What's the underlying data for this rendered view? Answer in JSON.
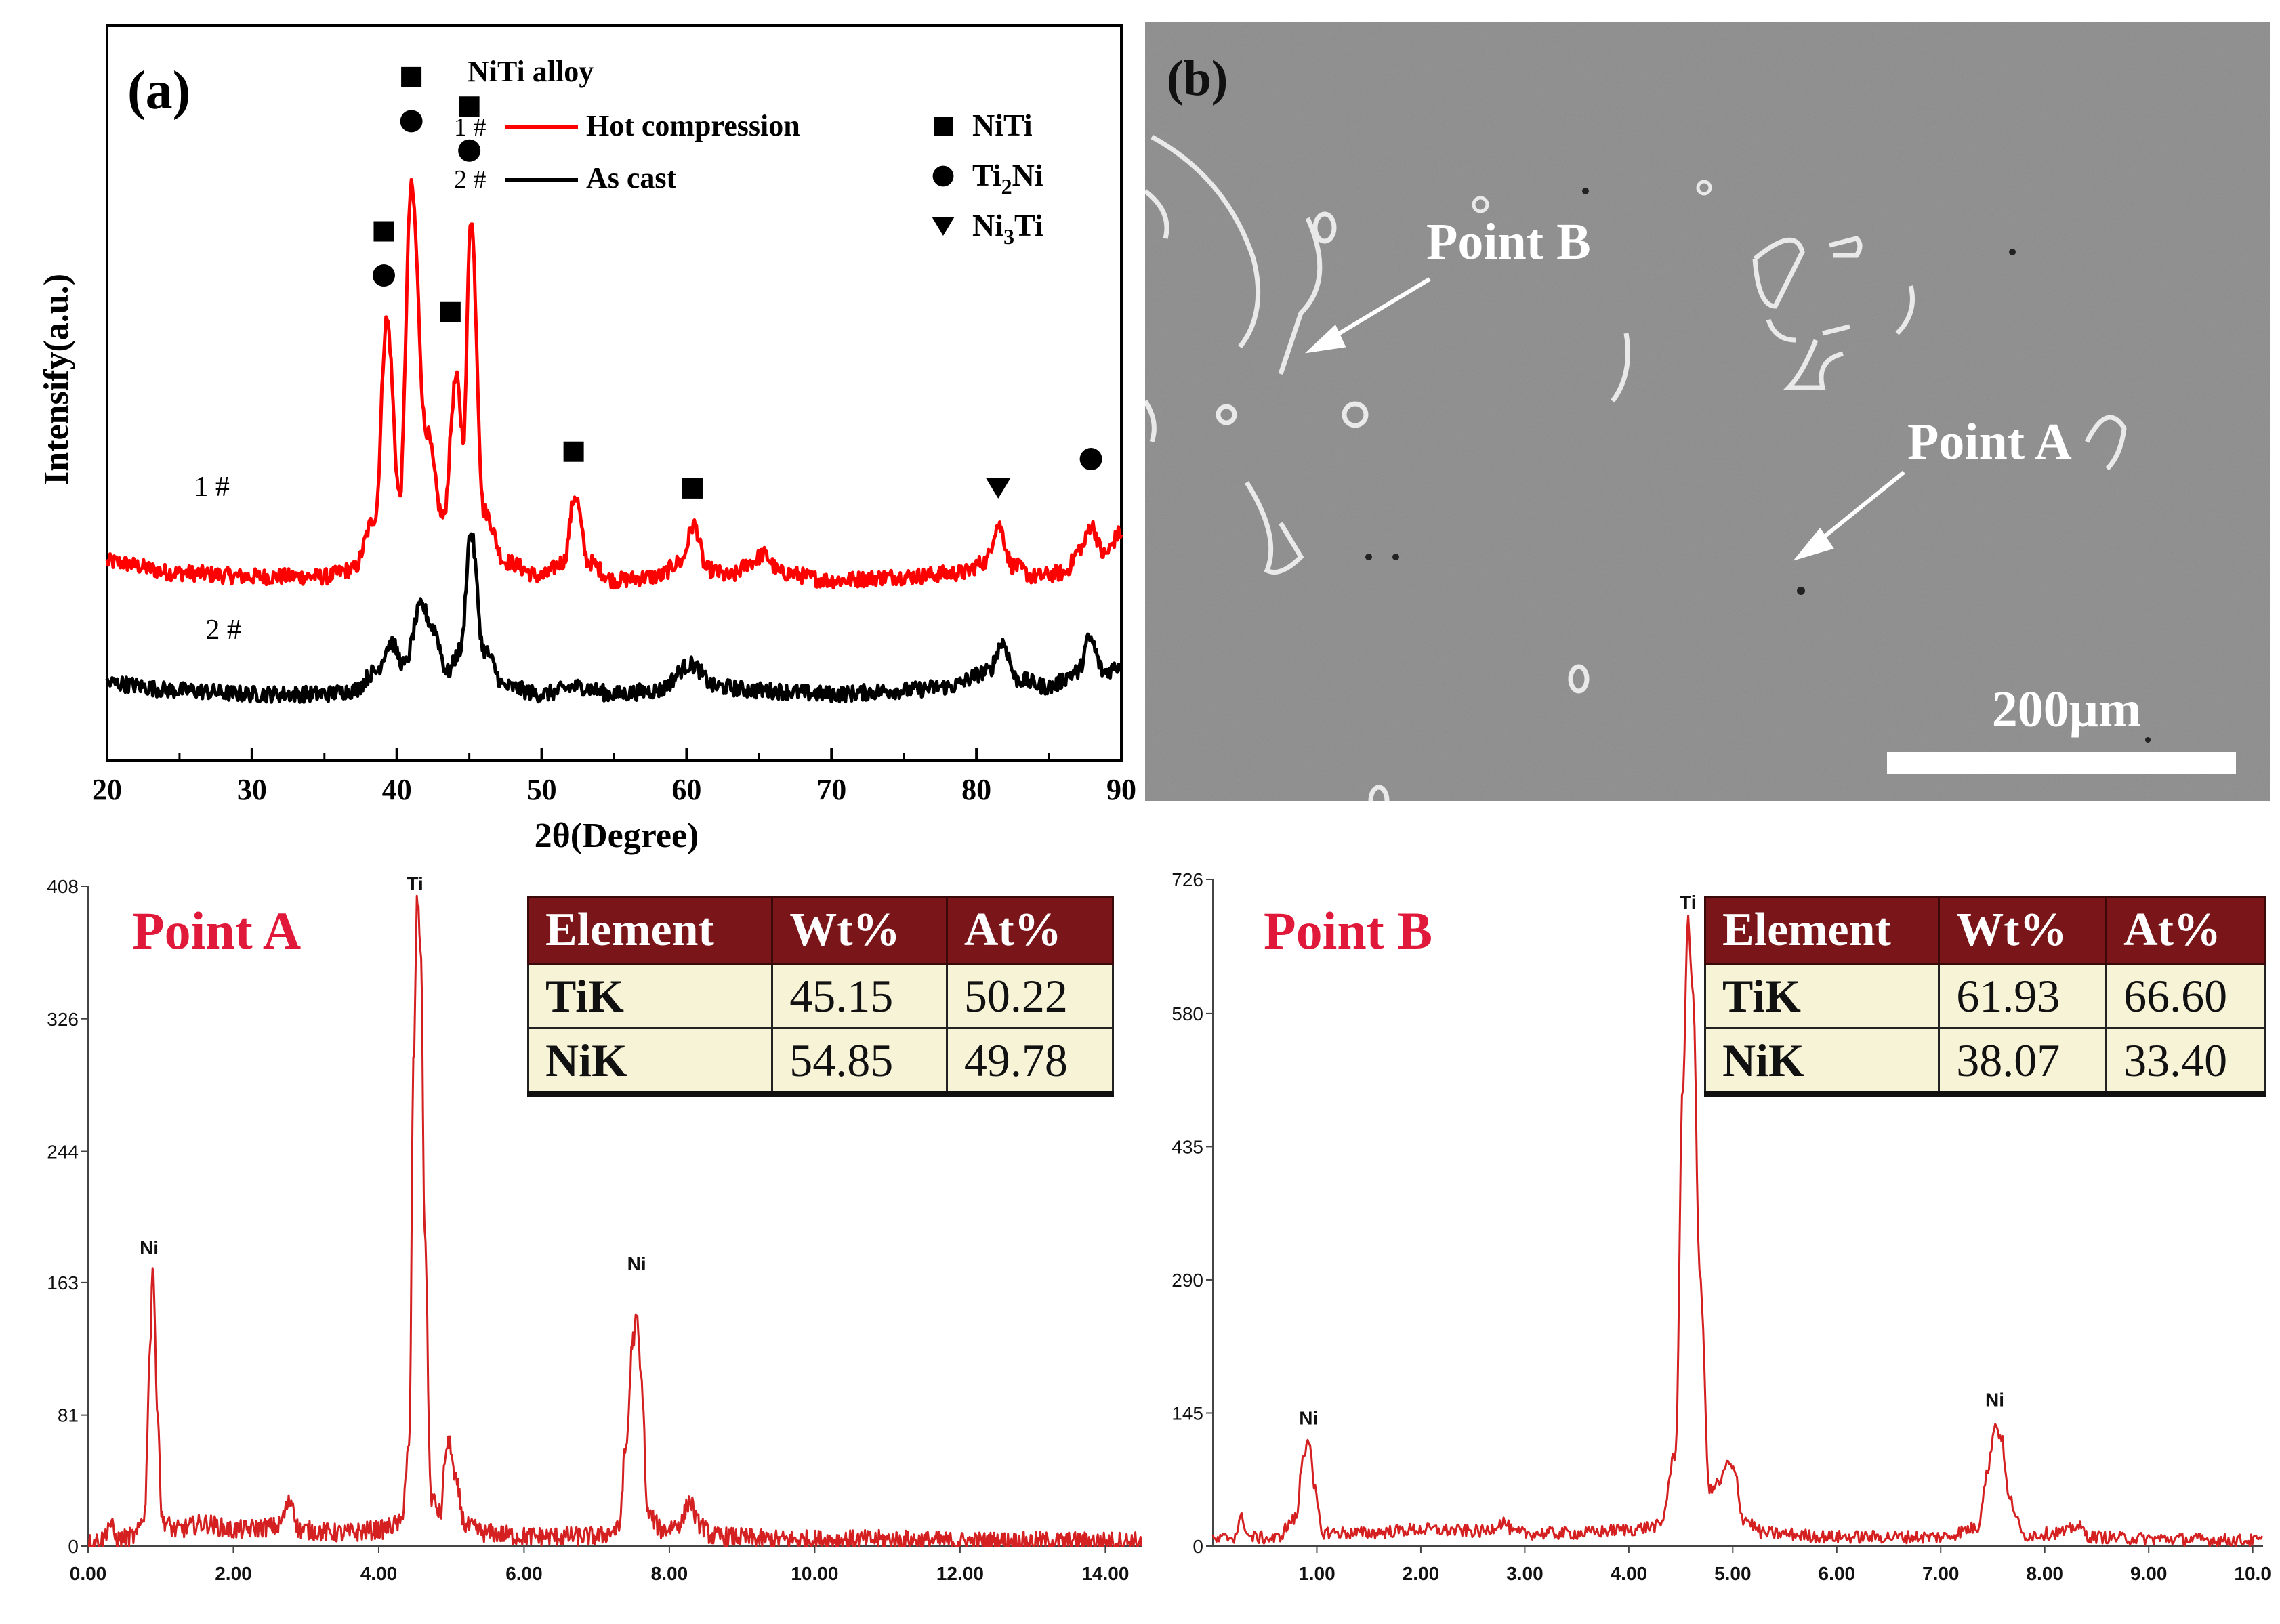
{
  "xrd": {
    "panel_label": "(a)",
    "legend_title": "NiTi alloy",
    "chart_data": {
      "type": "line",
      "title": "NiTi alloy",
      "xlabel": "2θ(Degree)",
      "ylabel": "Intensify(a.u.)",
      "xlim": [
        20,
        90
      ],
      "xticks": [
        "20",
        "30",
        "40",
        "50",
        "60",
        "70",
        "80",
        "90"
      ],
      "series": [
        {
          "id": "1#",
          "name": "Hot compression",
          "color": "#ff0000",
          "points": [
            [
              20,
              0.27
            ],
            [
              25,
              0.255
            ],
            [
              30,
              0.25
            ],
            [
              35,
              0.25
            ],
            [
              37,
              0.26
            ],
            [
              38.5,
              0.33
            ],
            [
              39.3,
              0.6
            ],
            [
              40.2,
              0.36
            ],
            [
              41.0,
              0.78
            ],
            [
              42.0,
              0.45
            ],
            [
              43.2,
              0.33
            ],
            [
              44.1,
              0.52
            ],
            [
              44.6,
              0.44
            ],
            [
              45.1,
              0.74
            ],
            [
              46,
              0.34
            ],
            [
              47.5,
              0.27
            ],
            [
              50,
              0.25
            ],
            [
              51.5,
              0.27
            ],
            [
              52.3,
              0.36
            ],
            [
              53.2,
              0.27
            ],
            [
              55,
              0.245
            ],
            [
              58,
              0.25
            ],
            [
              59.6,
              0.27
            ],
            [
              60.5,
              0.32
            ],
            [
              61.4,
              0.26
            ],
            [
              63,
              0.25
            ],
            [
              64.5,
              0.27
            ],
            [
              65.3,
              0.28
            ],
            [
              66.5,
              0.255
            ],
            [
              70,
              0.245
            ],
            [
              75,
              0.25
            ],
            [
              79,
              0.255
            ],
            [
              80.6,
              0.27
            ],
            [
              81.5,
              0.32
            ],
            [
              82.5,
              0.265
            ],
            [
              84,
              0.25
            ],
            [
              86,
              0.255
            ],
            [
              87.3,
              0.29
            ],
            [
              87.9,
              0.32
            ],
            [
              88.8,
              0.28
            ],
            [
              90,
              0.31
            ]
          ]
        },
        {
          "id": "2#",
          "name": "As cast",
          "color": "#000000",
          "points": [
            [
              20,
              0.105
            ],
            [
              25,
              0.095
            ],
            [
              30,
              0.09
            ],
            [
              35,
              0.09
            ],
            [
              37,
              0.095
            ],
            [
              38.5,
              0.12
            ],
            [
              39.6,
              0.16
            ],
            [
              40.5,
              0.13
            ],
            [
              41.7,
              0.21
            ],
            [
              42.5,
              0.18
            ],
            [
              43.5,
              0.12
            ],
            [
              44.4,
              0.15
            ],
            [
              45.1,
              0.31
            ],
            [
              46,
              0.15
            ],
            [
              47.5,
              0.1
            ],
            [
              50,
              0.09
            ],
            [
              52.5,
              0.1
            ],
            [
              55,
              0.09
            ],
            [
              58,
              0.095
            ],
            [
              60.3,
              0.13
            ],
            [
              62,
              0.1
            ],
            [
              65,
              0.095
            ],
            [
              70,
              0.09
            ],
            [
              75,
              0.095
            ],
            [
              78,
              0.1
            ],
            [
              80.8,
              0.12
            ],
            [
              81.8,
              0.16
            ],
            [
              82.8,
              0.11
            ],
            [
              85,
              0.1
            ],
            [
              87,
              0.12
            ],
            [
              87.8,
              0.165
            ],
            [
              88.8,
              0.12
            ],
            [
              90,
              0.13
            ]
          ]
        }
      ],
      "phase_markers": [
        {
          "phase": "NiTi",
          "shape": "square",
          "x": 39.1,
          "y": 0.72
        },
        {
          "phase": "Ti2Ni",
          "shape": "circle",
          "x": 39.1,
          "y": 0.66
        },
        {
          "phase": "NiTi",
          "shape": "square",
          "x": 41.0,
          "y": 0.93
        },
        {
          "phase": "Ti2Ni",
          "shape": "circle",
          "x": 41.0,
          "y": 0.87
        },
        {
          "phase": "NiTi",
          "shape": "square",
          "x": 43.7,
          "y": 0.61
        },
        {
          "phase": "NiTi",
          "shape": "square",
          "x": 45.0,
          "y": 0.89
        },
        {
          "phase": "Ti2Ni",
          "shape": "circle",
          "x": 45.0,
          "y": 0.83
        },
        {
          "phase": "NiTi",
          "shape": "square",
          "x": 52.2,
          "y": 0.42
        },
        {
          "phase": "NiTi",
          "shape": "square",
          "x": 60.4,
          "y": 0.37
        },
        {
          "phase": "Ni3Ti",
          "shape": "triangle",
          "x": 81.5,
          "y": 0.37
        },
        {
          "phase": "Ti2Ni",
          "shape": "circle",
          "x": 87.9,
          "y": 0.41
        }
      ]
    },
    "curve_labels": [
      {
        "text": "1 #",
        "x": 26,
        "y": 0.36
      },
      {
        "text": "2 #",
        "x": 26.8,
        "y": 0.165
      }
    ],
    "series_legend": [
      {
        "id": "1 #",
        "label": "Hot compression",
        "color": "#ff0000"
      },
      {
        "id": "2 #",
        "label": "As cast",
        "color": "#000000"
      }
    ],
    "phase_legend": [
      {
        "shape": "square",
        "label": "NiTi",
        "main": "NiTi",
        "sub": ""
      },
      {
        "shape": "circle",
        "label": "Ti2Ni",
        "main": "Ti",
        "sub": "2",
        "tail": "Ni"
      },
      {
        "shape": "triangle",
        "label": "Ni3Ti",
        "main": "Ni",
        "sub": "3",
        "tail": "Ti"
      }
    ]
  },
  "sem": {
    "panel_label": "(b)",
    "point_b": "Point B",
    "point_a": "Point A",
    "scale_bar": "200μm",
    "colors": {
      "background": "#8a8a8a",
      "particle_edge": "#e8e8e8",
      "text": "#ffffff"
    }
  },
  "eds_a": {
    "title": "Point A",
    "chart_data": {
      "type": "line",
      "title": "Point A",
      "xlim": [
        0,
        14.5
      ],
      "ylim": [
        0,
        408
      ],
      "xticks": [
        "0.00",
        "2.00",
        "4.00",
        "6.00",
        "8.00",
        "10.00",
        "12.00",
        "14.00"
      ],
      "yticks": [
        "0",
        "81",
        "163",
        "244",
        "326",
        "408"
      ],
      "color": "#d42020",
      "points": [
        [
          0,
          2
        ],
        [
          0.2,
          4
        ],
        [
          0.3,
          14
        ],
        [
          0.4,
          4
        ],
        [
          0.65,
          6
        ],
        [
          0.78,
          20
        ],
        [
          0.85,
          120
        ],
        [
          0.89,
          175
        ],
        [
          0.95,
          90
        ],
        [
          1.02,
          16
        ],
        [
          1.2,
          10
        ],
        [
          1.6,
          14
        ],
        [
          2.0,
          10
        ],
        [
          2.6,
          12
        ],
        [
          2.8,
          28
        ],
        [
          2.9,
          10
        ],
        [
          3.5,
          8
        ],
        [
          4.0,
          10
        ],
        [
          4.3,
          14
        ],
        [
          4.42,
          60
        ],
        [
          4.48,
          300
        ],
        [
          4.53,
          400
        ],
        [
          4.58,
          370
        ],
        [
          4.63,
          200
        ],
        [
          4.72,
          30
        ],
        [
          4.85,
          20
        ],
        [
          4.93,
          60
        ],
        [
          4.98,
          64
        ],
        [
          5.05,
          40
        ],
        [
          5.2,
          12
        ],
        [
          5.5,
          8
        ],
        [
          6.0,
          6
        ],
        [
          7.0,
          6
        ],
        [
          7.3,
          10
        ],
        [
          7.4,
          60
        ],
        [
          7.5,
          128
        ],
        [
          7.55,
          140
        ],
        [
          7.62,
          100
        ],
        [
          7.7,
          20
        ],
        [
          7.9,
          10
        ],
        [
          8.15,
          14
        ],
        [
          8.28,
          28
        ],
        [
          8.4,
          14
        ],
        [
          8.6,
          6
        ],
        [
          9.5,
          4
        ],
        [
          11,
          4
        ],
        [
          12,
          3
        ],
        [
          13,
          3
        ],
        [
          14.5,
          3
        ]
      ],
      "peak_labels": [
        {
          "text": "Ni",
          "x": 0.84,
          "y": 178
        },
        {
          "text": "Ti",
          "x": 4.5,
          "y": 403
        },
        {
          "text": "Ni",
          "x": 7.55,
          "y": 168
        }
      ]
    },
    "table": {
      "headers": [
        "Element",
        "Wt%",
        "At%"
      ],
      "rows": [
        [
          "TiK",
          "45.15",
          "50.22"
        ],
        [
          "NiK",
          "54.85",
          "49.78"
        ]
      ]
    }
  },
  "eds_b": {
    "title": "Point B",
    "chart_data": {
      "type": "line",
      "title": "Point B",
      "xlim": [
        0,
        10.1
      ],
      "ylim": [
        0,
        726
      ],
      "xticks": [
        "1.00",
        "2.00",
        "3.00",
        "4.00",
        "5.00",
        "6.00",
        "7.00",
        "8.00",
        "9.00",
        "10.0"
      ],
      "yticks": [
        "0",
        "145",
        "290",
        "435",
        "580",
        "726"
      ],
      "color": "#d42020",
      "points": [
        [
          0,
          6
        ],
        [
          0.2,
          10
        ],
        [
          0.28,
          30
        ],
        [
          0.35,
          10
        ],
        [
          0.6,
          8
        ],
        [
          0.8,
          30
        ],
        [
          0.87,
          100
        ],
        [
          0.92,
          118
        ],
        [
          0.98,
          60
        ],
        [
          1.05,
          15
        ],
        [
          1.4,
          14
        ],
        [
          2.0,
          18
        ],
        [
          2.6,
          16
        ],
        [
          2.8,
          26
        ],
        [
          2.9,
          14
        ],
        [
          3.5,
          14
        ],
        [
          4.0,
          18
        ],
        [
          4.3,
          22
        ],
        [
          4.45,
          100
        ],
        [
          4.52,
          500
        ],
        [
          4.57,
          680
        ],
        [
          4.62,
          600
        ],
        [
          4.68,
          300
        ],
        [
          4.78,
          60
        ],
        [
          4.88,
          70
        ],
        [
          4.95,
          90
        ],
        [
          5.02,
          80
        ],
        [
          5.1,
          30
        ],
        [
          5.3,
          14
        ],
        [
          6.0,
          10
        ],
        [
          7.0,
          10
        ],
        [
          7.35,
          20
        ],
        [
          7.45,
          80
        ],
        [
          7.52,
          132
        ],
        [
          7.58,
          120
        ],
        [
          7.66,
          50
        ],
        [
          7.8,
          12
        ],
        [
          8.2,
          15
        ],
        [
          8.3,
          22
        ],
        [
          8.45,
          10
        ],
        [
          9.0,
          8
        ],
        [
          10.1,
          6
        ]
      ],
      "peak_labels": [
        {
          "text": "Ni",
          "x": 0.92,
          "y": 128
        },
        {
          "text": "Ti",
          "x": 4.57,
          "y": 690
        },
        {
          "text": "Ni",
          "x": 7.52,
          "y": 148
        }
      ]
    },
    "table": {
      "headers": [
        "Element",
        "Wt%",
        "At%"
      ],
      "rows": [
        [
          "TiK",
          "61.93",
          "66.60"
        ],
        [
          "NiK",
          "38.07",
          "33.40"
        ]
      ]
    }
  }
}
